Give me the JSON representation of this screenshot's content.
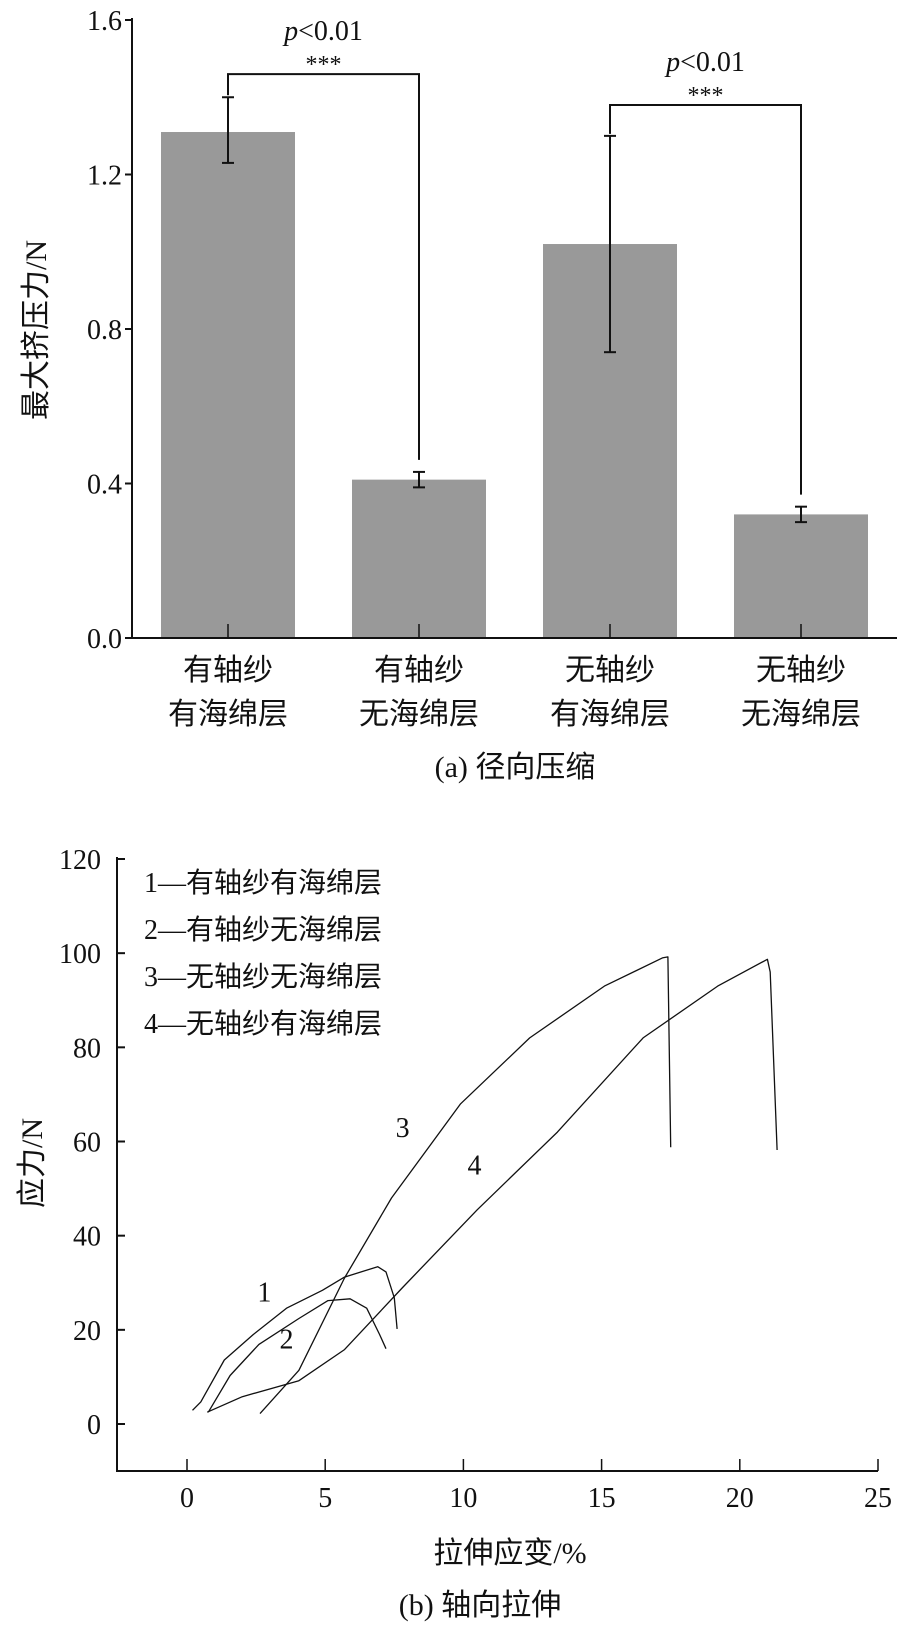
{
  "chart_data": [
    {
      "type": "bar",
      "caption": "(a) 径向压缩",
      "ylabel": "最大挤压力/N",
      "xlabel": "",
      "ylim": [
        0,
        1.6
      ],
      "yticks": [
        "0.0",
        "0.4",
        "0.8",
        "1.2",
        "1.6"
      ],
      "ytick_values": [
        0,
        0.4,
        0.8,
        1.2,
        1.6
      ],
      "categories": [
        [
          "有轴纱",
          "有海绵层"
        ],
        [
          "有轴纱",
          "无海绵层"
        ],
        [
          "无轴纱",
          "有海绵层"
        ],
        [
          "无轴纱",
          "无海绵层"
        ]
      ],
      "values": [
        1.31,
        0.41,
        1.02,
        0.32
      ],
      "error_low": [
        1.23,
        0.39,
        0.74,
        0.3
      ],
      "error_high": [
        1.4,
        0.43,
        1.3,
        0.34
      ],
      "bar_color": "#999999",
      "significance": [
        {
          "from": 0,
          "to": 1,
          "level": 1.46,
          "stars": "***",
          "p_prefix": "p",
          "p_text": "<0.01"
        },
        {
          "from": 2,
          "to": 3,
          "level": 1.38,
          "stars": "***",
          "p_prefix": "p",
          "p_text": "<0.01"
        }
      ]
    },
    {
      "type": "line",
      "caption": "(b) 轴向拉伸",
      "xlabel": "拉伸应变/%",
      "ylabel": "应力/N",
      "xlim": [
        -2.5,
        25
      ],
      "ylim": [
        -10,
        120
      ],
      "xticks": [
        "0",
        "5",
        "10",
        "15",
        "20",
        "25"
      ],
      "xtick_values": [
        0,
        5,
        10,
        15,
        20,
        25
      ],
      "yticks": [
        "0",
        "20",
        "40",
        "60",
        "80",
        "100",
        "120"
      ],
      "ytick_values": [
        0,
        20,
        40,
        60,
        80,
        100,
        120
      ],
      "legend_position": "top-left",
      "legend": [
        "1—有轴纱有海绵层",
        "2—有轴纱无海绵层",
        "3—无轴纱无海绵层",
        "4—无轴纱有海绵层"
      ],
      "series": [
        {
          "name": "1",
          "label_at": [
            2.8,
            26
          ],
          "x": [
            0.2,
            0.5,
            1.35,
            2.4,
            3.6,
            4.9,
            5.7,
            6.9,
            7.2,
            7.5,
            7.6
          ],
          "y": [
            2.9,
            4.7,
            13.6,
            19,
            24.6,
            28.4,
            31.2,
            33.4,
            32.3,
            26.8,
            20.2
          ]
        },
        {
          "name": "2",
          "label_at": [
            3.6,
            16
          ],
          "x": [
            0.77,
            1.56,
            2.6,
            4.05,
            5.1,
            5.9,
            6.5,
            6.96,
            7.2
          ],
          "y": [
            2.5,
            10.3,
            16.9,
            22.4,
            26.2,
            26.6,
            24.6,
            19.1,
            16
          ]
        },
        {
          "name": "3",
          "label_at": [
            7.8,
            61
          ],
          "x": [
            2.64,
            4.05,
            5.7,
            7.4,
            9.9,
            12.4,
            15.1,
            17.2,
            17.4,
            17.5
          ],
          "y": [
            2.2,
            11.4,
            31,
            48,
            68,
            82,
            93,
            99,
            99.2,
            58.8
          ]
        },
        {
          "name": "4",
          "label_at": [
            10.4,
            53
          ],
          "x": [
            0.73,
            2,
            4.05,
            5.7,
            7.8,
            10.5,
            13.4,
            16.5,
            19.2,
            21,
            21.1,
            21.35
          ],
          "y": [
            2.5,
            5.8,
            9.2,
            15.8,
            29,
            45.5,
            62,
            82,
            93,
            98.7,
            96,
            58.2
          ]
        }
      ]
    }
  ]
}
